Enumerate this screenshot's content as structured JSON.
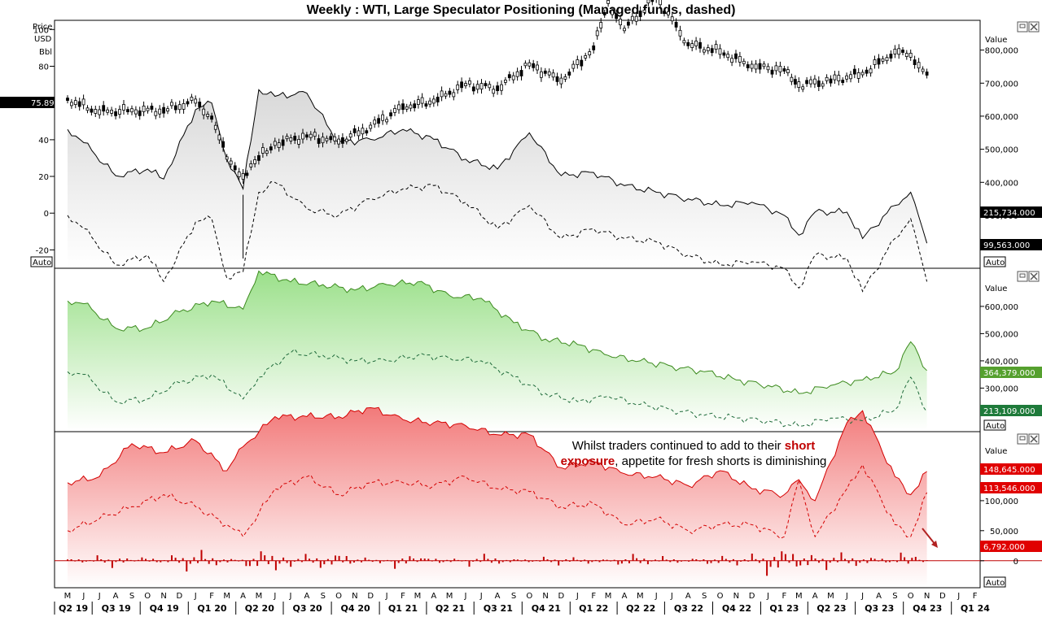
{
  "title": "Weekly : WTI, Large Speculator Positioning (Managed funds, dashed)",
  "auto_label": "Auto",
  "value_label": "Value",
  "panel1": {
    "price_axis_label": [
      "Price",
      "USD",
      "Bbl"
    ],
    "price_ticks": [
      "100",
      "80",
      "60",
      "40",
      "20",
      "0",
      "-20"
    ],
    "price_badge": "75.89",
    "value_ticks": [
      "800,000",
      "700,000",
      "600,000",
      "500,000",
      "400,000",
      "300,000"
    ],
    "badge_solid": "215,734.000",
    "badge_dashed": "99,563.000"
  },
  "panel2": {
    "value_ticks": [
      "600,000",
      "500,000",
      "400,000",
      "300,000"
    ],
    "badge_solid": "364,379.000",
    "badge_dashed": "213,109.000"
  },
  "panel3": {
    "value_ticks": [
      "100,000",
      "50,000",
      "0"
    ],
    "badge_solid": "148,645.000",
    "badge_dashed": "113,546.000",
    "badge_bar": "6,792.000",
    "annotation_line1_a": "Whilst traders continued to add to their ",
    "annotation_line1_b": "short",
    "annotation_line2_a": "exposure",
    "annotation_line2_b": ", appetite for fresh shorts is diminishing"
  },
  "x_axis": {
    "months": [
      "M",
      "J",
      "J",
      "A",
      "S",
      "O",
      "N",
      "D",
      "J",
      "F",
      "M",
      "A",
      "M",
      "J",
      "J",
      "A",
      "S",
      "O",
      "N",
      "D",
      "J",
      "F",
      "M",
      "A",
      "M",
      "J",
      "J",
      "A",
      "S",
      "O",
      "N",
      "D",
      "J",
      "F",
      "M",
      "A",
      "M",
      "J",
      "J",
      "A",
      "S",
      "O",
      "N",
      "D",
      "J",
      "F",
      "M",
      "A",
      "M",
      "J",
      "J",
      "A",
      "S",
      "O",
      "N",
      "D",
      "J",
      "F"
    ],
    "quarters": [
      "Q2 19",
      "Q3 19",
      "Q4 19",
      "Q1 20",
      "Q2 20",
      "Q3 20",
      "Q4 20",
      "Q1 21",
      "Q2 21",
      "Q3 21",
      "Q4 21",
      "Q1 22",
      "Q2 22",
      "Q3 22",
      "Q4 22",
      "Q1 23",
      "Q2 23",
      "Q3 23",
      "Q4 23",
      "Q1 24"
    ]
  },
  "chart_data": [
    {
      "type": "line",
      "title": "Weekly : WTI, Large Speculator Positioning (Managed funds, dashed)",
      "note": "Top panel: WTI weekly candles on price axis; large speculator net long (solid) and managed funds net long (dashed) on value axis",
      "price_series": {
        "name": "WTI",
        "last": 75.89,
        "y_range": [
          -30,
          105
        ],
        "x": [
          "2019-05",
          "2019-07",
          "2019-09",
          "2019-11",
          "2020-01",
          "2020-02",
          "2020-03",
          "2020-04",
          "2020-05",
          "2020-06",
          "2020-08",
          "2020-10",
          "2020-12",
          "2021-02",
          "2021-04",
          "2021-06",
          "2021-08",
          "2021-10",
          "2021-12",
          "2022-02",
          "2022-03",
          "2022-04",
          "2022-06",
          "2022-08",
          "2022-10",
          "2022-12",
          "2023-02",
          "2023-03",
          "2023-05",
          "2023-07",
          "2023-09",
          "2023-10",
          "2023-11"
        ],
        "values": [
          62,
          55,
          56,
          56,
          61,
          52,
          30,
          20,
          30,
          38,
          42,
          39,
          47,
          58,
          61,
          70,
          68,
          81,
          72,
          90,
          115,
          100,
          118,
          92,
          88,
          80,
          78,
          70,
          72,
          76,
          88,
          86,
          76
        ]
      },
      "value_series": [
        {
          "name": "Large speculators",
          "dashed": false,
          "last": 215734,
          "x": [
            "2019-05",
            "2019-06",
            "2019-08",
            "2019-10",
            "2019-11",
            "2020-01",
            "2020-02",
            "2020-03",
            "2020-04",
            "2020-05",
            "2020-06",
            "2020-08",
            "2020-10",
            "2020-12",
            "2021-02",
            "2021-04",
            "2021-06",
            "2021-08",
            "2021-10",
            "2021-12",
            "2022-02",
            "2022-04",
            "2022-06",
            "2022-08",
            "2022-10",
            "2022-12",
            "2023-02",
            "2023-03",
            "2023-04",
            "2023-06",
            "2023-07",
            "2023-09",
            "2023-10",
            "2023-11"
          ],
          "values": [
            560000,
            520000,
            420000,
            440000,
            410000,
            620000,
            640000,
            470000,
            380000,
            680000,
            660000,
            670000,
            520000,
            530000,
            560000,
            530000,
            470000,
            440000,
            550000,
            420000,
            430000,
            390000,
            370000,
            350000,
            330000,
            340000,
            300000,
            240000,
            310000,
            310000,
            230000,
            330000,
            370000,
            215734
          ]
        },
        {
          "name": "Managed funds",
          "dashed": true,
          "last": 99563,
          "x": [
            "2019-05",
            "2019-06",
            "2019-08",
            "2019-10",
            "2019-11",
            "2020-01",
            "2020-02",
            "2020-03",
            "2020-04",
            "2020-05",
            "2020-06",
            "2020-08",
            "2020-10",
            "2020-12",
            "2021-02",
            "2021-04",
            "2021-06",
            "2021-08",
            "2021-10",
            "2021-12",
            "2022-02",
            "2022-04",
            "2022-06",
            "2022-08",
            "2022-10",
            "2022-12",
            "2023-02",
            "2023-03",
            "2023-04",
            "2023-06",
            "2023-07",
            "2023-09",
            "2023-10",
            "2023-11"
          ],
          "values": [
            300000,
            260000,
            150000,
            180000,
            100000,
            280000,
            290000,
            110000,
            130000,
            370000,
            400000,
            320000,
            300000,
            350000,
            380000,
            390000,
            340000,
            260000,
            330000,
            230000,
            260000,
            230000,
            220000,
            180000,
            150000,
            160000,
            140000,
            80000,
            180000,
            170000,
            70000,
            230000,
            290000,
            99563
          ]
        }
      ],
      "value_range": [
        140000,
        890000
      ]
    },
    {
      "type": "area",
      "title": "",
      "note": "Middle panel: long positions (solid) and managed funds longs (dashed)",
      "series": [
        {
          "name": "",
          "dashed": false,
          "last": 364379,
          "x": [
            "2019-05",
            "2019-06",
            "2019-08",
            "2019-10",
            "2019-12",
            "2020-02",
            "2020-04",
            "2020-05",
            "2020-07",
            "2020-09",
            "2020-11",
            "2021-01",
            "2021-03",
            "2021-05",
            "2021-07",
            "2021-09",
            "2021-11",
            "2022-01",
            "2022-03",
            "2022-05",
            "2022-07",
            "2022-09",
            "2022-11",
            "2023-01",
            "2023-03",
            "2023-05",
            "2023-07",
            "2023-09",
            "2023-10",
            "2023-11"
          ],
          "values": [
            620000,
            610000,
            520000,
            520000,
            580000,
            620000,
            590000,
            730000,
            690000,
            680000,
            660000,
            680000,
            690000,
            640000,
            630000,
            540000,
            480000,
            460000,
            420000,
            400000,
            380000,
            360000,
            330000,
            310000,
            280000,
            310000,
            330000,
            360000,
            470000,
            364379
          ]
        },
        {
          "name": "",
          "dashed": true,
          "last": 213109,
          "x": [
            "2019-05",
            "2019-06",
            "2019-08",
            "2019-10",
            "2019-12",
            "2020-02",
            "2020-04",
            "2020-05",
            "2020-07",
            "2020-09",
            "2020-11",
            "2021-01",
            "2021-03",
            "2021-05",
            "2021-07",
            "2021-09",
            "2021-11",
            "2022-01",
            "2022-03",
            "2022-05",
            "2022-07",
            "2022-09",
            "2022-11",
            "2023-01",
            "2023-03",
            "2023-05",
            "2023-07",
            "2023-09",
            "2023-10",
            "2023-11"
          ],
          "values": [
            360000,
            350000,
            250000,
            260000,
            320000,
            350000,
            260000,
            340000,
            430000,
            420000,
            400000,
            400000,
            420000,
            410000,
            400000,
            340000,
            280000,
            250000,
            270000,
            240000,
            220000,
            200000,
            190000,
            180000,
            160000,
            190000,
            180000,
            220000,
            340000,
            213109
          ]
        }
      ],
      "value_range": [
        140000,
        740000
      ]
    },
    {
      "type": "area",
      "title": "",
      "note": "Bottom panel: short positions (solid), managed funds shorts (dashed), weekly change in shorts (bars)",
      "series": [
        {
          "name": "",
          "dashed": false,
          "last": 148645,
          "x": [
            "2019-05",
            "2019-07",
            "2019-09",
            "2019-11",
            "2020-01",
            "2020-03",
            "2020-04",
            "2020-06",
            "2020-08",
            "2020-10",
            "2020-12",
            "2021-02",
            "2021-04",
            "2021-06",
            "2021-08",
            "2021-10",
            "2021-12",
            "2022-02",
            "2022-04",
            "2022-06",
            "2022-08",
            "2022-10",
            "2022-12",
            "2023-02",
            "2023-03",
            "2023-04",
            "2023-06",
            "2023-07",
            "2023-09",
            "2023-10",
            "2023-11"
          ],
          "values": [
            130000,
            140000,
            195000,
            180000,
            200000,
            150000,
            190000,
            240000,
            240000,
            240000,
            255000,
            235000,
            230000,
            225000,
            210000,
            210000,
            155000,
            165000,
            145000,
            140000,
            125000,
            150000,
            120000,
            110000,
            135000,
            100000,
            230000,
            250000,
            140000,
            110000,
            148645
          ]
        },
        {
          "name": "",
          "dashed": true,
          "last": 113546,
          "x": [
            "2019-05",
            "2019-07",
            "2019-09",
            "2019-11",
            "2020-01",
            "2020-03",
            "2020-04",
            "2020-06",
            "2020-08",
            "2020-10",
            "2020-12",
            "2021-02",
            "2021-04",
            "2021-06",
            "2021-08",
            "2021-10",
            "2021-12",
            "2022-02",
            "2022-04",
            "2022-06",
            "2022-08",
            "2022-10",
            "2022-12",
            "2023-02",
            "2023-03",
            "2023-04",
            "2023-06",
            "2023-07",
            "2023-09",
            "2023-10",
            "2023-11"
          ],
          "values": [
            50000,
            70000,
            90000,
            110000,
            90000,
            60000,
            40000,
            120000,
            140000,
            110000,
            130000,
            130000,
            125000,
            140000,
            120000,
            115000,
            90000,
            95000,
            60000,
            70000,
            50000,
            60000,
            60000,
            40000,
            135000,
            40000,
            120000,
            160000,
            60000,
            40000,
            113546
          ]
        }
      ],
      "bars": {
        "name": "",
        "last": 6792,
        "values": [
          6000,
          -4000,
          10000,
          -12000,
          4000,
          8000,
          -6000,
          14000,
          -20000,
          18000,
          -8000,
          4000,
          -22000,
          25000,
          -18000,
          -10000,
          12000,
          -16000,
          20000,
          -8000,
          6000,
          -4000,
          -14000,
          10000,
          8000,
          -6000,
          4000,
          -10000,
          12000,
          -6000,
          5000,
          -4000,
          8000,
          -8000,
          6000,
          -6000,
          4000,
          -12000,
          14000,
          -6000,
          8000,
          -4000,
          6000,
          -10000,
          10000,
          -8000,
          12000,
          -30000,
          28000,
          -20000,
          12000,
          -16000,
          14000,
          -10000,
          8000,
          -6000,
          18000,
          6792
        ]
      },
      "value_range": [
        -45000,
        215000
      ]
    }
  ]
}
